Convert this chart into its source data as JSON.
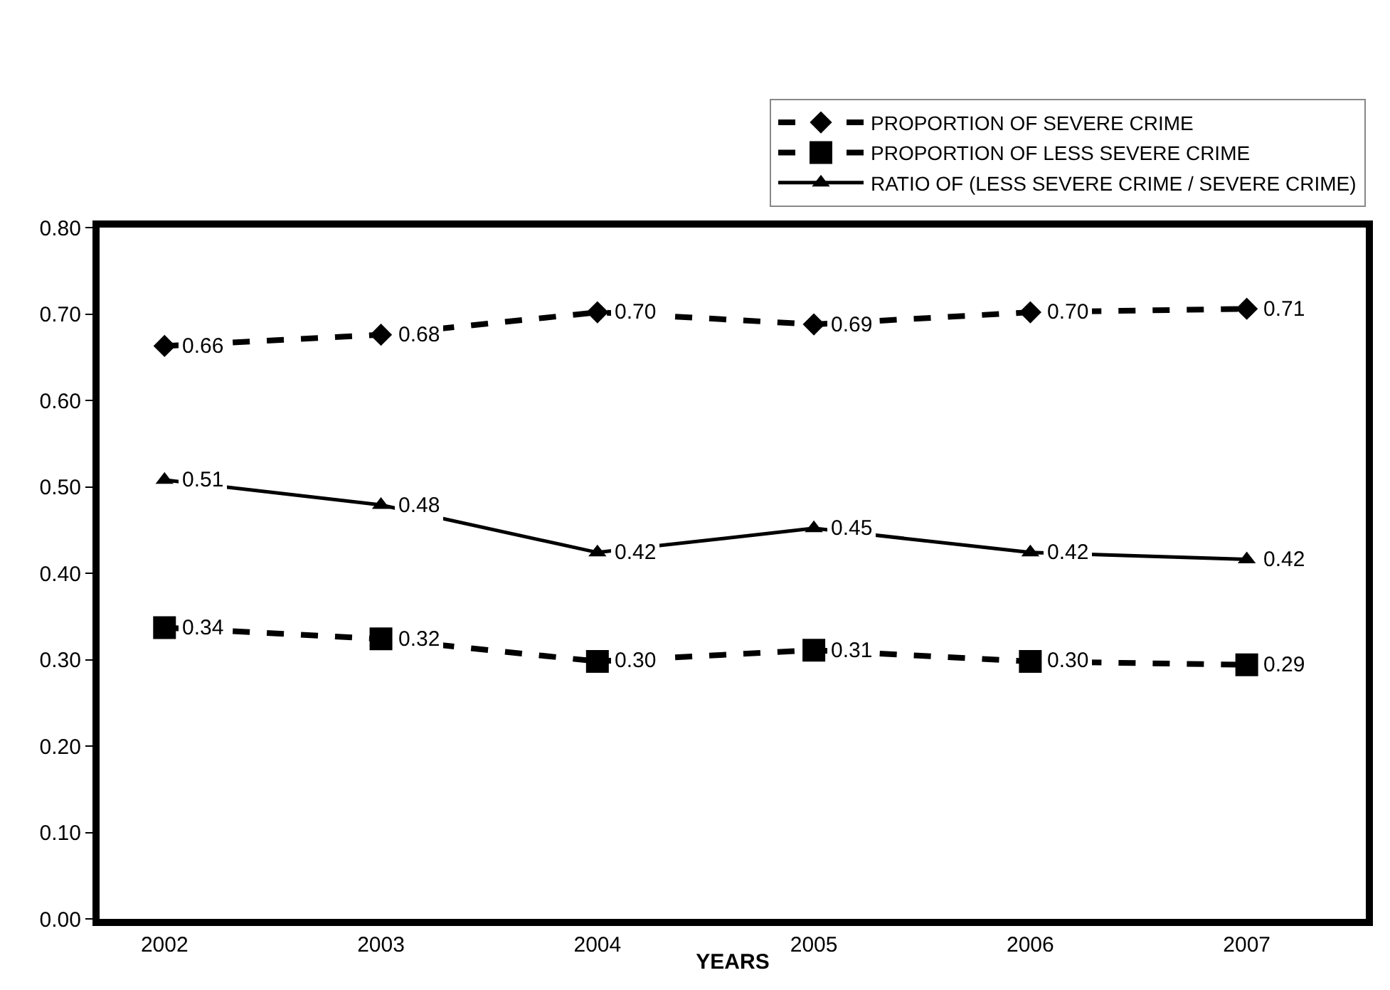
{
  "chart_data": {
    "type": "line",
    "xlabel": "YEARS",
    "categories": [
      "2002",
      "2003",
      "2004",
      "2005",
      "2006",
      "2007"
    ],
    "series": [
      {
        "name": "PROPORTION OF SEVERE CRIME",
        "color": "#000000",
        "marker": "diamond",
        "line_style": "dashed",
        "values": [
          0.663,
          0.676,
          0.702,
          0.688,
          0.702,
          0.706
        ],
        "value_labels": [
          "0.66",
          "0.68",
          "0.70",
          "0.69",
          "0.70",
          "0.71"
        ]
      },
      {
        "name": "PROPORTION OF LESS SEVERE CRIME",
        "color": "#000000",
        "marker": "square",
        "line_style": "dashed",
        "values": [
          0.337,
          0.324,
          0.298,
          0.311,
          0.298,
          0.294
        ],
        "value_labels": [
          "0.34",
          "0.32",
          "0.30",
          "0.31",
          "0.30",
          "0.29"
        ]
      },
      {
        "name": "RATIO OF (LESS SEVERE CRIME / SEVERE CRIME)",
        "color": "#000000",
        "marker": "triangle",
        "line_style": "solid",
        "values": [
          0.508,
          0.479,
          0.424,
          0.452,
          0.424,
          0.416
        ],
        "value_labels": [
          "0.51",
          "0.48",
          "0.42",
          "0.45",
          "0.42",
          "0.42"
        ]
      }
    ],
    "ylim": [
      0,
      0.8
    ],
    "yticks": [
      {
        "value": 0,
        "label": "0.00"
      },
      {
        "value": 0.1,
        "label": "0.10"
      },
      {
        "value": 0.2,
        "label": "0.20"
      },
      {
        "value": 0.3,
        "label": "0.30"
      },
      {
        "value": 0.4,
        "label": "0.40"
      },
      {
        "value": 0.5,
        "label": "0.50"
      },
      {
        "value": 0.6,
        "label": "0.60"
      },
      {
        "value": 0.7,
        "label": "0.70"
      },
      {
        "value": 0.8,
        "label": "0.80"
      }
    ],
    "grid": false,
    "legend": "top right"
  }
}
